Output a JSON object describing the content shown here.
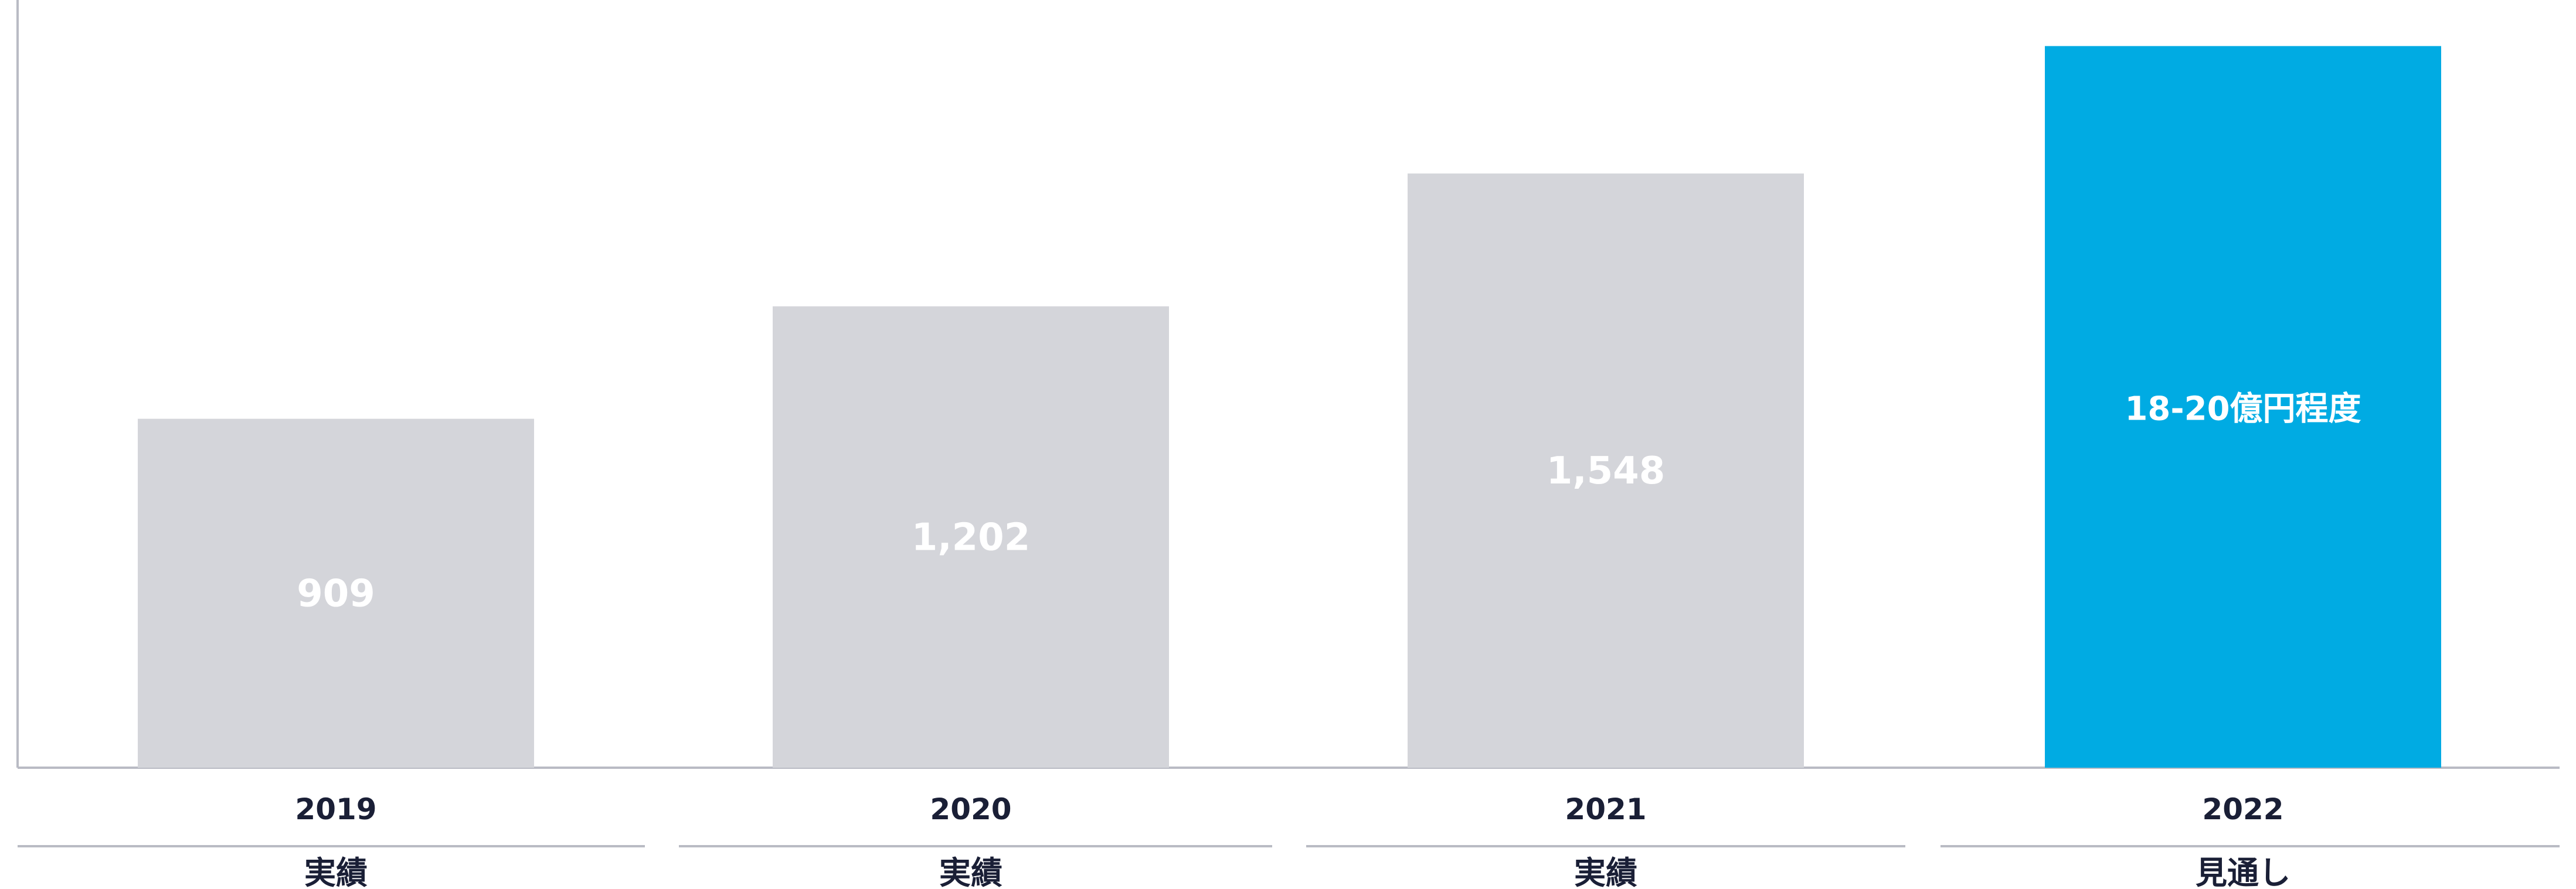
{
  "chart_data": {
    "type": "bar",
    "categories": [
      "2019",
      "2020",
      "2021",
      "2022"
    ],
    "values": [
      909,
      1202,
      1548,
      1880
    ],
    "data_labels": [
      "909",
      "1,202",
      "1,548",
      "18-20億円程度"
    ],
    "statuses": [
      "実績",
      "実績",
      "実績",
      "見通し"
    ],
    "ylim": [
      0,
      2000
    ],
    "grid": false,
    "legend": "none",
    "colors": {
      "actual": "#d4d5da",
      "forecast": "#00abe3",
      "axis": "#b9bbc4",
      "text": "#1a1f36"
    }
  }
}
